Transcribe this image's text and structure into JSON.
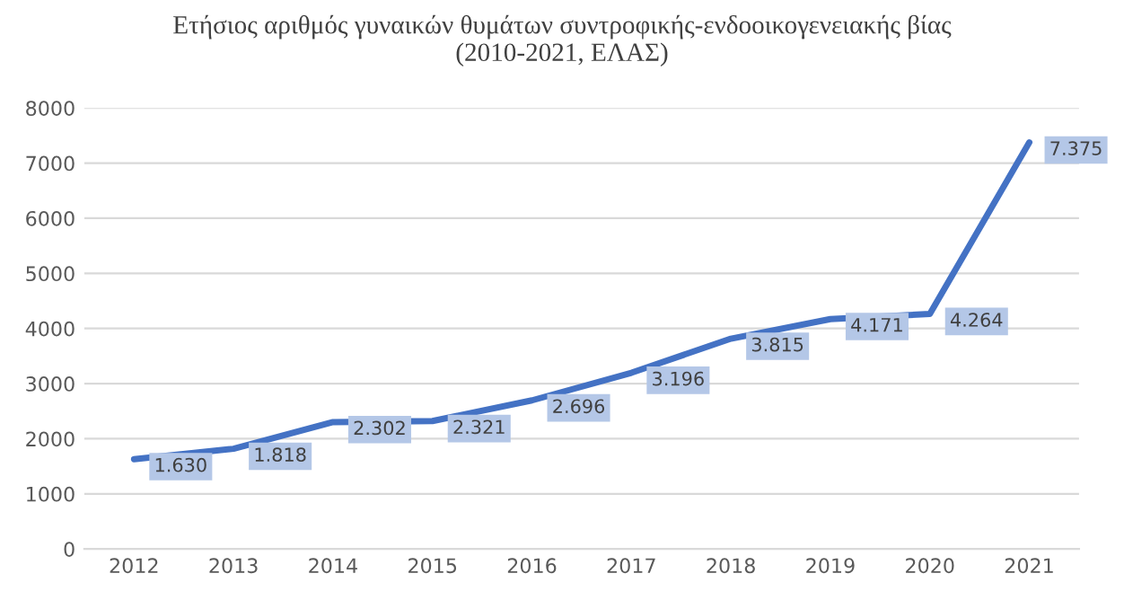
{
  "chart_data": {
    "type": "line",
    "title": "Ετήσιος αριθμός γυναικών θυμάτων συντροφικής-ενδοοικογενειακής βίας\n(2010-2021, ΕΛΑΣ)",
    "categories": [
      "2012",
      "2013",
      "2014",
      "2015",
      "2016",
      "2017",
      "2018",
      "2019",
      "2020",
      "2021"
    ],
    "series": [
      {
        "color": "#4472c4",
        "values": [
          1630,
          1818,
          2302,
          2321,
          2696,
          3196,
          3815,
          4171,
          4264,
          7375
        ],
        "value_labels": [
          "1.630",
          "1.818",
          "2.302",
          "2.321",
          "2.696",
          "3.196",
          "3.815",
          "4.171",
          "4.264",
          "7.375"
        ]
      }
    ],
    "ylim": [
      0,
      8000
    ],
    "yticks": [
      0,
      1000,
      2000,
      3000,
      4000,
      5000,
      6000,
      7000,
      8000
    ],
    "grid": "y",
    "marker": "none",
    "line_style": "solid"
  }
}
